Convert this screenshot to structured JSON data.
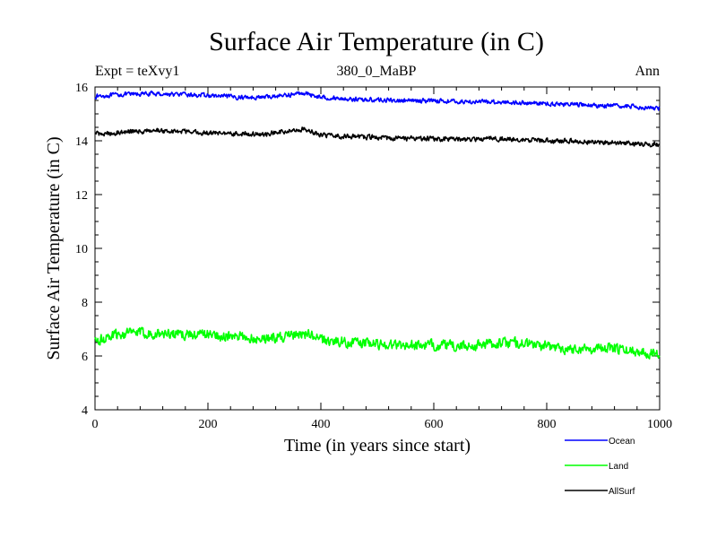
{
  "chart_data": {
    "type": "line",
    "title": "Surface Air Temperature (in C)",
    "subtitle": "380_0_MaBP",
    "experiment_label": "Expt = teXvy1",
    "period_label": "Ann",
    "xlabel": "Time (in years since start)",
    "ylabel": "Surface Air Temperature (in C)",
    "xlim": [
      0,
      1000
    ],
    "ylim": [
      4,
      16
    ],
    "x_ticks": [
      0,
      200,
      400,
      600,
      800,
      1000
    ],
    "y_ticks": [
      4,
      6,
      8,
      10,
      12,
      14,
      16
    ],
    "legend_position": "below-right",
    "series": [
      {
        "name": "Ocean",
        "color": "#0000ff",
        "x": [
          0,
          50,
          100,
          150,
          200,
          250,
          300,
          350,
          370,
          400,
          450,
          500,
          550,
          600,
          650,
          700,
          750,
          800,
          850,
          900,
          950,
          1000
        ],
        "values": [
          15.65,
          15.72,
          15.75,
          15.72,
          15.68,
          15.62,
          15.62,
          15.72,
          15.78,
          15.62,
          15.55,
          15.52,
          15.48,
          15.5,
          15.45,
          15.45,
          15.42,
          15.38,
          15.35,
          15.3,
          15.28,
          15.2
        ]
      },
      {
        "name": "Land",
        "color": "#00ff00",
        "x": [
          0,
          25,
          50,
          100,
          150,
          200,
          250,
          300,
          350,
          370,
          400,
          450,
          500,
          550,
          600,
          650,
          700,
          750,
          800,
          850,
          900,
          950,
          1000
        ],
        "values": [
          6.5,
          6.7,
          6.85,
          6.85,
          6.8,
          6.8,
          6.7,
          6.65,
          6.75,
          6.85,
          6.6,
          6.5,
          6.45,
          6.4,
          6.4,
          6.35,
          6.45,
          6.5,
          6.35,
          6.25,
          6.3,
          6.2,
          6.1
        ]
      },
      {
        "name": "AllSurf",
        "color": "#000000",
        "x": [
          0,
          50,
          100,
          150,
          200,
          250,
          300,
          350,
          370,
          400,
          450,
          500,
          550,
          600,
          650,
          700,
          750,
          800,
          850,
          900,
          950,
          1000
        ],
        "values": [
          14.25,
          14.32,
          14.38,
          14.35,
          14.3,
          14.25,
          14.25,
          14.38,
          14.45,
          14.22,
          14.15,
          14.12,
          14.08,
          14.08,
          14.05,
          14.07,
          14.05,
          14.0,
          13.98,
          13.95,
          13.9,
          13.85
        ]
      }
    ]
  }
}
